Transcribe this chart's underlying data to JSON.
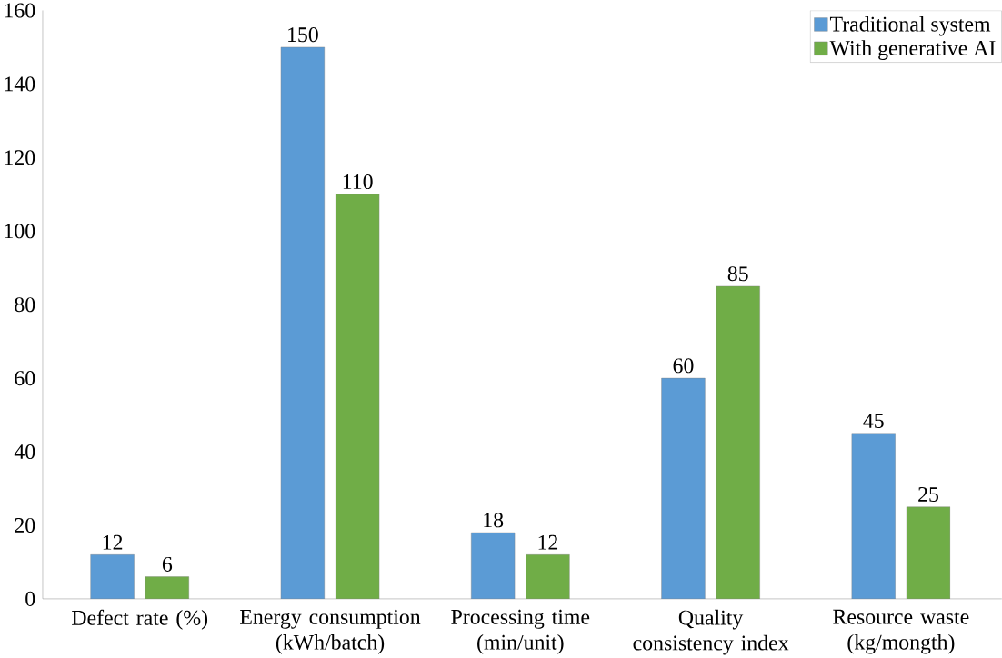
{
  "chart_data": {
    "type": "bar",
    "categories": [
      "Defect rate (%)",
      "Energy consumption (kWh/batch)",
      "Processing time (min/unit)",
      "Quality consistency index",
      "Resource waste (kg/mongth)"
    ],
    "series": [
      {
        "name": "Traditional system",
        "color": "#5b9bd5",
        "values": [
          12,
          150,
          18,
          60,
          45
        ]
      },
      {
        "name": "With generative AI",
        "color": "#70ad47",
        "values": [
          6,
          110,
          12,
          85,
          25
        ]
      }
    ],
    "ylim": [
      0,
      160
    ],
    "yticks": [
      0,
      20,
      40,
      60,
      80,
      100,
      120,
      140,
      160
    ],
    "data_labels": true,
    "legend": "top right",
    "grid": false
  }
}
